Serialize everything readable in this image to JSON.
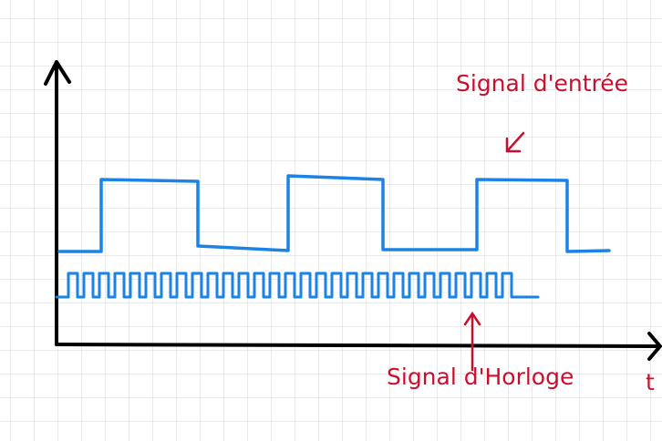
{
  "labels": {
    "input_signal": "Signal d'entrée",
    "clock_signal": "Signal d'Horloge",
    "time_axis": "t"
  }
}
